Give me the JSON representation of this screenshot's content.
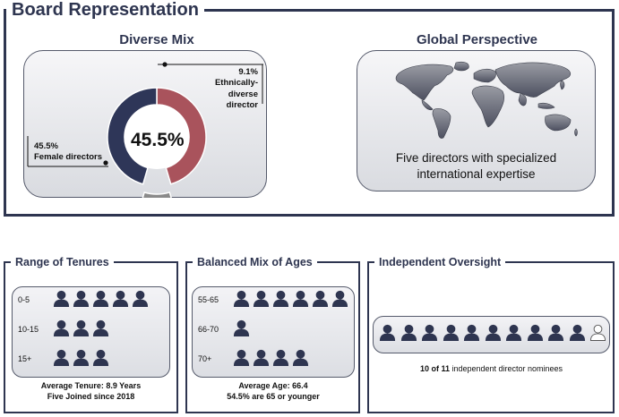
{
  "title": "Board Representation",
  "diverse_mix": {
    "heading": "Diverse Mix",
    "center_value": "45.5%",
    "female": {
      "pct": "45.5%",
      "label": "Female directors",
      "value": 45.5
    },
    "ethnic": {
      "pct": "9.1%",
      "label_line1": "Ethnically-diverse",
      "label_line2": "director",
      "value": 9.1
    },
    "colors": {
      "female": "#2e3658",
      "other": "#a9535c",
      "ethnic": "#8a8a8a"
    }
  },
  "global": {
    "heading": "Global Perspective",
    "caption_line1": "Five directors with specialized",
    "caption_line2": "international expertise"
  },
  "tenures": {
    "heading": "Range of Tenures",
    "rows": [
      {
        "label": "0-5",
        "count": 5
      },
      {
        "label": "10-15",
        "count": 3
      },
      {
        "label": "15+",
        "count": 3
      }
    ],
    "foot_line1": "Average Tenure: 8.9 Years",
    "foot_line2": "Five Joined since 2018"
  },
  "ages": {
    "heading": "Balanced Mix of Ages",
    "rows": [
      {
        "label": "55-65",
        "count": 6
      },
      {
        "label": "66-70",
        "count": 1
      },
      {
        "label": "70+",
        "count": 4
      }
    ],
    "foot_line1": "Average Age: 66.4",
    "foot_line2": "54.5% are 65 or younger"
  },
  "independent": {
    "heading": "Independent Oversight",
    "independent_count": 10,
    "total_count": 11,
    "foot_bold": "10 of 11",
    "foot_rest": " independent director nominees"
  },
  "icons": {
    "person": "person-icon",
    "map": "world-map-icon"
  },
  "colors": {
    "navy": "#2e3550"
  }
}
